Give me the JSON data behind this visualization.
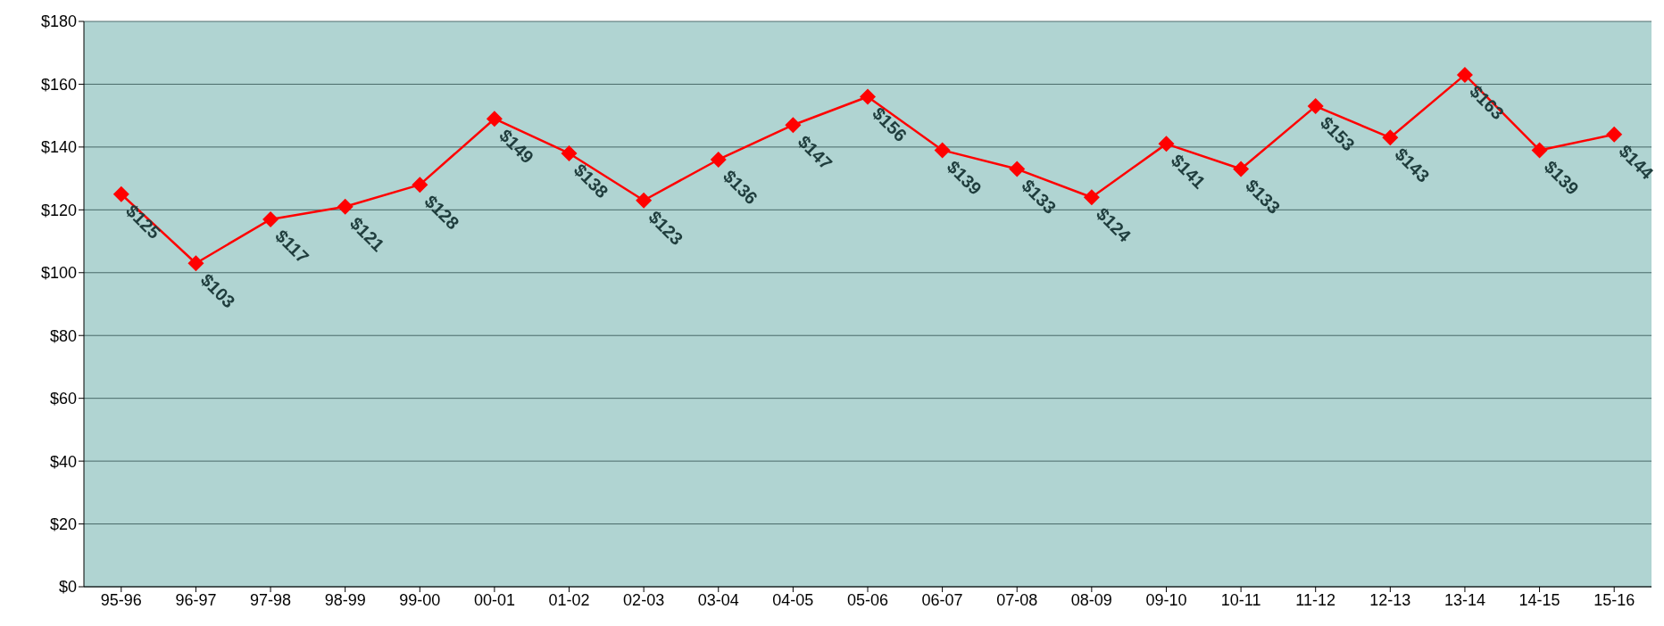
{
  "chart_data": {
    "type": "line",
    "categories": [
      "95-96",
      "96-97",
      "97-98",
      "98-99",
      "99-00",
      "00-01",
      "01-02",
      "02-03",
      "03-04",
      "04-05",
      "05-06",
      "06-07",
      "07-08",
      "08-09",
      "09-10",
      "10-11",
      "11-12",
      "12-13",
      "13-14",
      "14-15",
      "15-16"
    ],
    "series": [
      {
        "color": "#ff0000",
        "values": [
          125,
          103,
          117,
          121,
          128,
          149,
          138,
          123,
          136,
          147,
          156,
          139,
          133,
          124,
          141,
          133,
          153,
          143,
          163,
          139,
          144
        ],
        "value_labels": [
          "$125",
          "$103",
          "$117",
          "$121",
          "$128",
          "$149",
          "$138",
          "$123",
          "$136",
          "$147",
          "$156",
          "$139",
          "$133",
          "$124",
          "$141",
          "$133",
          "$153",
          "$143",
          "$163",
          "$139",
          "$144"
        ]
      }
    ],
    "ylim": [
      0,
      180
    ],
    "yticks": [
      {
        "value": 0,
        "label": "$0"
      },
      {
        "value": 20,
        "label": "$20"
      },
      {
        "value": 40,
        "label": "$40"
      },
      {
        "value": 60,
        "label": "$60"
      },
      {
        "value": 80,
        "label": "$80"
      },
      {
        "value": 100,
        "label": "$100"
      },
      {
        "value": 120,
        "label": "$120"
      },
      {
        "value": 140,
        "label": "$140"
      },
      {
        "value": 160,
        "label": "$160"
      },
      {
        "value": 180,
        "label": "$180"
      }
    ],
    "grid": "y",
    "marker": "diamond",
    "line_style": "solid"
  }
}
